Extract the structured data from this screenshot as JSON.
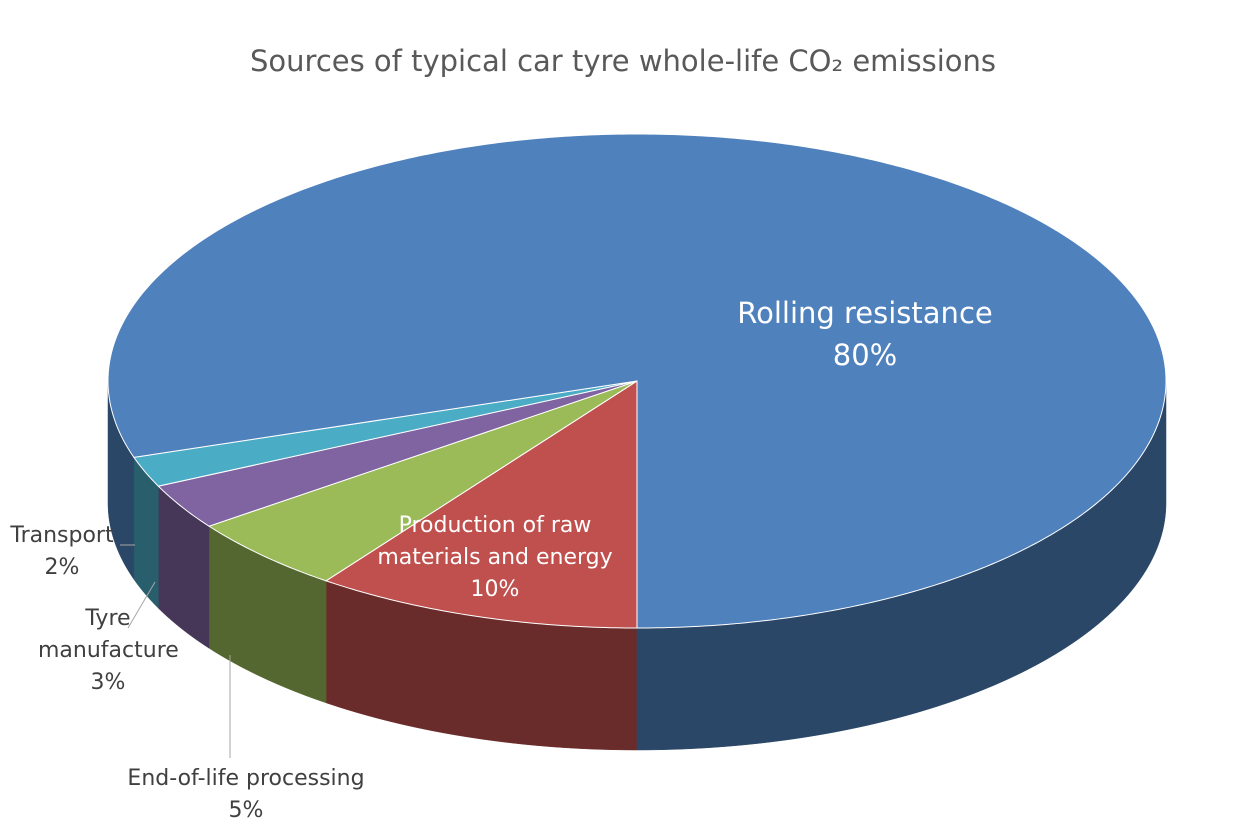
{
  "chart_data": {
    "type": "pie3d",
    "title": "Sources of typical car tyre whole-life CO₂ emissions",
    "categories": [
      "Production of raw materials and energy",
      "End-of-life processing",
      "Tyre manufacture",
      "Transport",
      "Rolling resistance"
    ],
    "values": [
      10,
      5,
      3,
      2,
      80
    ],
    "value_labels": [
      "10%",
      "5%",
      "3%",
      "2%",
      "80%"
    ],
    "colors": [
      "#c0504d",
      "#9bbb59",
      "#8064a2",
      "#4bacc6",
      "#4f81bd"
    ]
  }
}
